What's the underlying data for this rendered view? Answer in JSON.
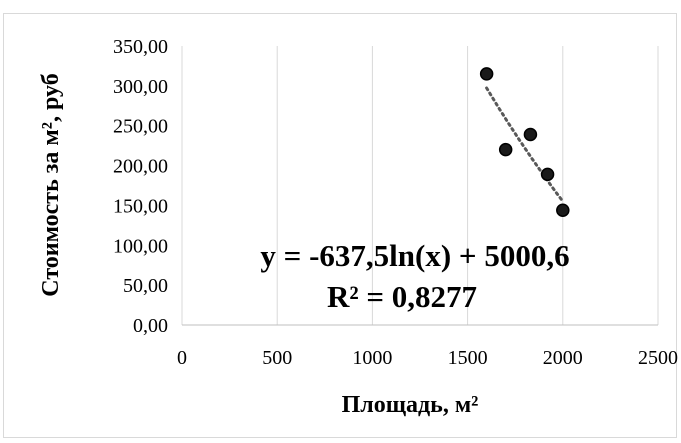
{
  "chart_data": {
    "type": "scatter",
    "xlabel": "Площадь, м²",
    "ylabel": "Стоимость за м², руб",
    "xlim": [
      0,
      2500
    ],
    "ylim": [
      0,
      350
    ],
    "x_ticks": [
      "0",
      "500",
      "1000",
      "1500",
      "2000",
      "2500"
    ],
    "y_ticks": [
      "0,00",
      "50,00",
      "100,00",
      "150,00",
      "200,00",
      "250,00",
      "300,00",
      "350,00"
    ],
    "grid": "vertical",
    "legend": "none",
    "series": [
      {
        "points": [
          {
            "x": 1600,
            "y": 315
          },
          {
            "x": 1700,
            "y": 220
          },
          {
            "x": 1830,
            "y": 239
          },
          {
            "x": 1920,
            "y": 189
          },
          {
            "x": 2000,
            "y": 144
          }
        ]
      }
    ],
    "trendline": {
      "type": "logarithmic",
      "a": -637.5,
      "b": 5000.6,
      "x_range": [
        1600,
        2000
      ],
      "equation": "y = -637,5ln(x) + 5000,6",
      "r_squared": "R² = 0,8277"
    },
    "colors": {
      "marker_fill": "#1a1a1a",
      "marker_stroke": "#000000",
      "trendline": "#595959",
      "grid": "#d9d9d9",
      "axis": "#bfbfbf"
    }
  }
}
